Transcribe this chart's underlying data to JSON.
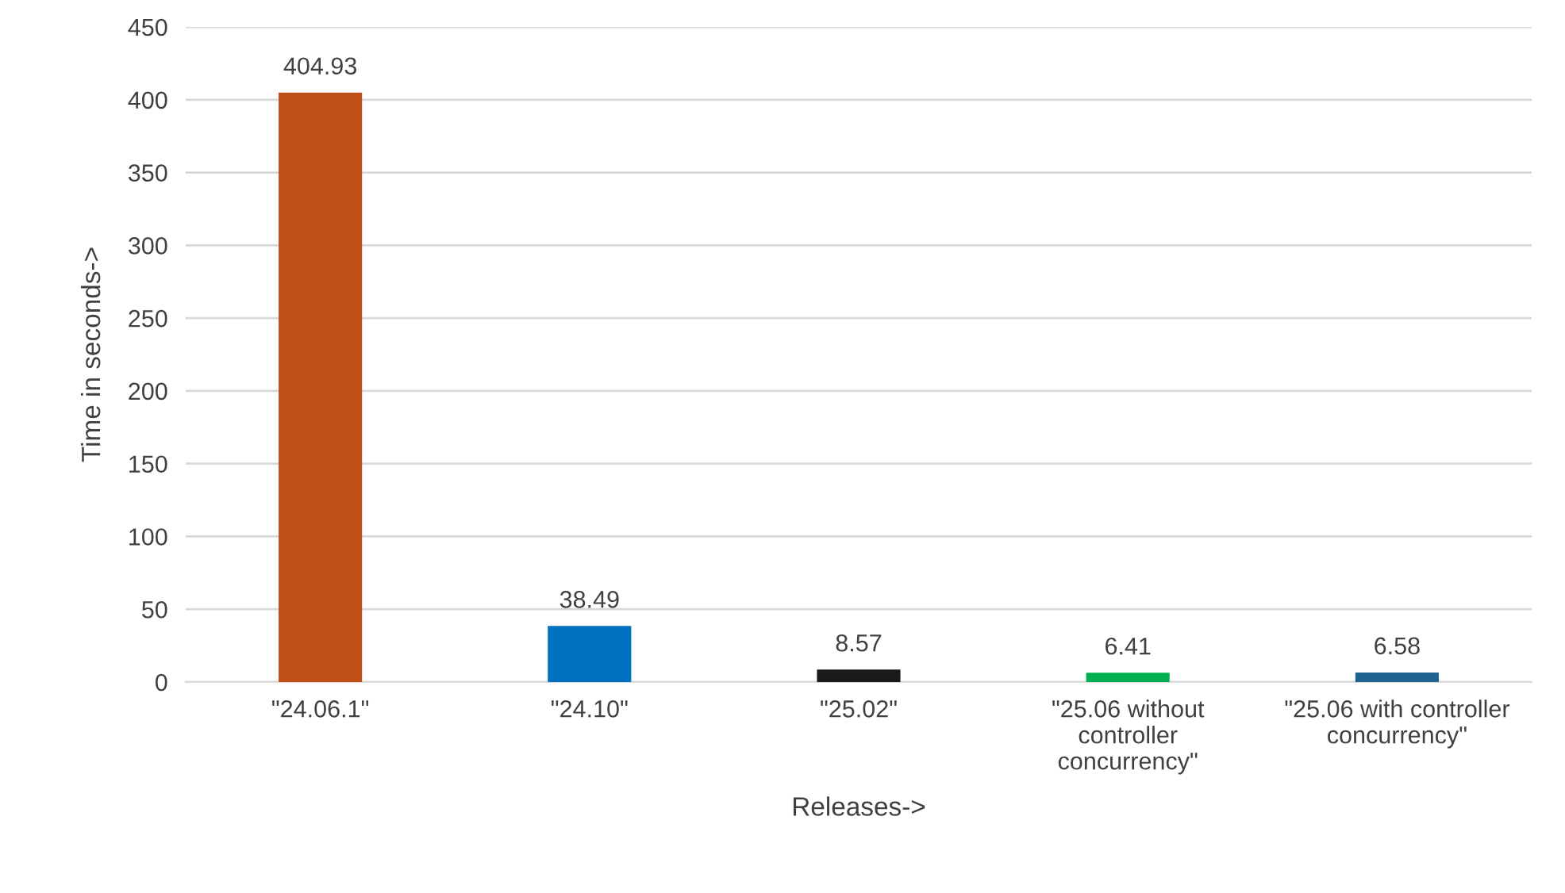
{
  "chart_data": {
    "type": "bar",
    "xlabel": "Releases->",
    "ylabel": "Time in seconds->",
    "categories": [
      "\"24.06.1\"",
      "\"24.10\"",
      "\"25.02\"",
      "\"25.06 without controller concurrency\"",
      "\"25.06 with controller concurrency\""
    ],
    "values": [
      404.93,
      38.49,
      8.57,
      6.41,
      6.58
    ],
    "colors": [
      "#c05018",
      "#0070c0",
      "#1a1a1a",
      "#00b050",
      "#1f6391"
    ],
    "data_labels": true,
    "ylim": [
      0,
      450
    ],
    "yticks": [
      0,
      50,
      100,
      150,
      200,
      250,
      300,
      350,
      400,
      450
    ],
    "grid": "y",
    "legend": false
  }
}
